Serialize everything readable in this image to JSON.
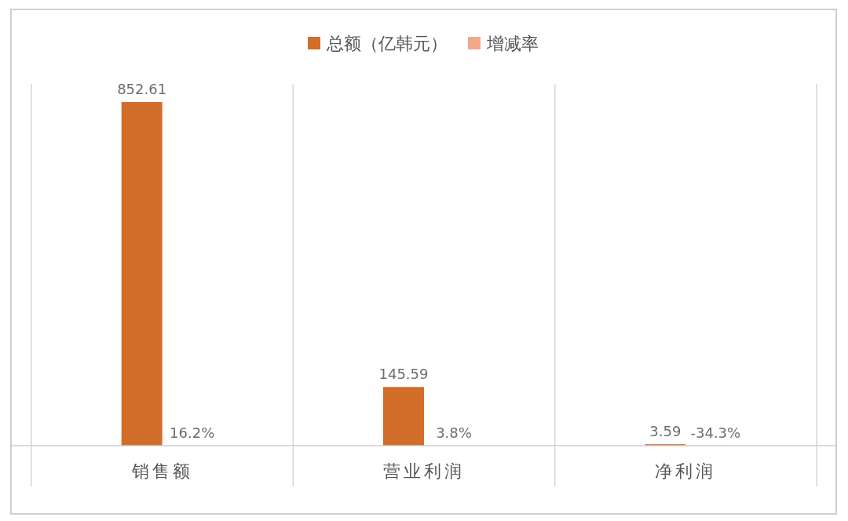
{
  "chart_data": {
    "type": "bar",
    "categories": [
      "销售额",
      "营业利润",
      "净利润"
    ],
    "series": [
      {
        "name": "总额（亿韩元）",
        "color": "#d26d2a",
        "values": [
          852.61,
          145.59,
          3.59
        ],
        "value_labels": [
          "852.61",
          "145.59",
          "3.59"
        ]
      },
      {
        "name": "增减率",
        "color": "#f2a98a",
        "values": [
          0.162,
          0.038,
          -0.343
        ],
        "value_labels": [
          "16.2%",
          "3.8%",
          "-34.3%"
        ]
      }
    ],
    "grid": "x",
    "legend": "top"
  }
}
